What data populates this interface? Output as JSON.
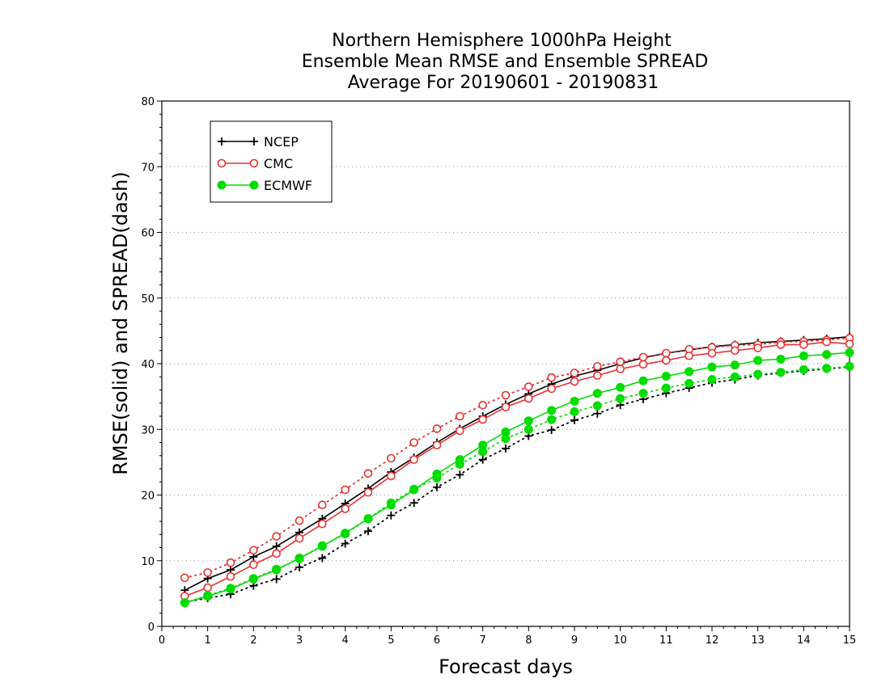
{
  "chart_data": {
    "type": "line",
    "title_lines": [
      "Northern Hemisphere 1000hPa Height",
      "Ensemble Mean RMSE and Ensemble SPREAD",
      "Average For 20190601 - 20190831"
    ],
    "xlabel": "Forecast days",
    "ylabel": "RMSE(solid) and SPREAD(dash)",
    "xlim": [
      0,
      15
    ],
    "ylim": [
      0,
      80
    ],
    "x_ticks": [
      "0",
      "1",
      "2",
      "3",
      "4",
      "5",
      "6",
      "7",
      "8",
      "9",
      "10",
      "11",
      "12",
      "13",
      "14",
      "15"
    ],
    "y_ticks": [
      "0",
      "10",
      "20",
      "30",
      "40",
      "50",
      "60",
      "70",
      "80"
    ],
    "grid": "horizontal dotted",
    "legend_position": "top-left",
    "x": [
      0.5,
      1,
      1.5,
      2,
      2.5,
      3,
      3.5,
      4,
      4.5,
      5,
      5.5,
      6,
      6.5,
      7,
      7.5,
      8,
      8.5,
      9,
      9.5,
      10,
      10.5,
      11,
      11.5,
      12,
      12.5,
      13,
      13.5,
      14,
      14.5,
      15
    ],
    "series": [
      {
        "name": "NCEP",
        "color": "#000000",
        "marker": "plus",
        "rmse": [
          5.5,
          7.3,
          8.6,
          10.6,
          12.2,
          14.3,
          16.4,
          18.7,
          21.0,
          23.5,
          25.7,
          28.0,
          30.1,
          32.0,
          33.8,
          35.4,
          36.9,
          38.1,
          39.0,
          40.0,
          40.9,
          41.6,
          42.1,
          42.6,
          42.9,
          43.2,
          43.4,
          43.6,
          43.8,
          44.1
        ],
        "spread": [
          3.7,
          4.3,
          4.9,
          6.2,
          7.2,
          9.0,
          10.4,
          12.6,
          14.5,
          16.9,
          18.8,
          21.2,
          23.1,
          25.4,
          27.1,
          29.0,
          29.9,
          31.4,
          32.4,
          33.7,
          34.6,
          35.5,
          36.3,
          37.1,
          37.6,
          38.2,
          38.6,
          38.9,
          39.2,
          39.5
        ]
      },
      {
        "name": "CMC",
        "color": "#e83030",
        "marker": "open-circle",
        "rmse": [
          4.6,
          5.9,
          7.6,
          9.4,
          11.1,
          13.4,
          15.6,
          17.9,
          20.4,
          22.9,
          25.4,
          27.6,
          29.8,
          31.5,
          33.4,
          34.7,
          36.2,
          37.3,
          38.2,
          39.2,
          39.9,
          40.5,
          41.2,
          41.6,
          42.0,
          42.4,
          42.9,
          42.9,
          43.3,
          43.0
        ],
        "spread": [
          7.4,
          8.2,
          9.7,
          11.6,
          13.7,
          16.1,
          18.5,
          20.8,
          23.3,
          25.6,
          28.0,
          30.1,
          32.0,
          33.7,
          35.2,
          36.5,
          37.9,
          38.6,
          39.6,
          40.3,
          41.0,
          41.6,
          42.2,
          42.5,
          42.8,
          42.9,
          43.3,
          43.4,
          43.6,
          43.9
        ]
      },
      {
        "name": "ECMWF",
        "color": "#00dd00",
        "marker": "filled-circle",
        "rmse": [
          3.6,
          4.6,
          5.7,
          7.2,
          8.6,
          10.4,
          12.2,
          14.2,
          16.4,
          18.5,
          20.8,
          23.2,
          25.4,
          27.6,
          29.6,
          31.3,
          32.9,
          34.3,
          35.5,
          36.4,
          37.4,
          38.1,
          38.8,
          39.5,
          39.8,
          40.5,
          40.7,
          41.2,
          41.4,
          41.7
        ],
        "spread": [
          3.6,
          4.7,
          5.8,
          7.3,
          8.7,
          10.3,
          12.3,
          14.1,
          16.4,
          18.8,
          20.9,
          22.6,
          24.7,
          26.6,
          28.6,
          30.0,
          31.5,
          32.7,
          33.6,
          34.7,
          35.5,
          36.3,
          37.0,
          37.6,
          38.0,
          38.4,
          38.7,
          39.1,
          39.3,
          39.6
        ]
      }
    ]
  }
}
